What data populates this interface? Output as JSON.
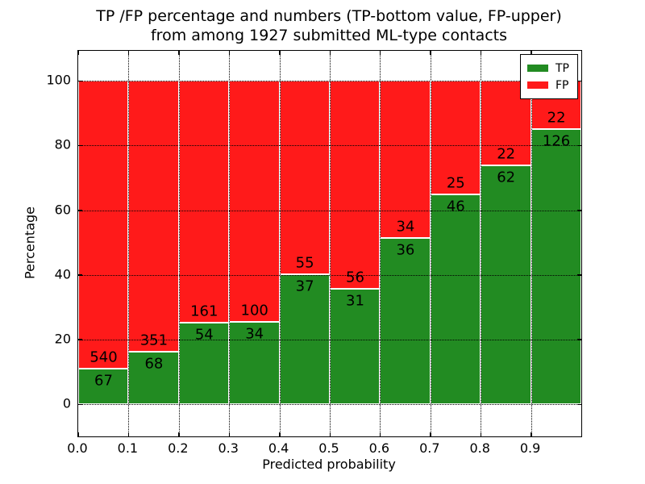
{
  "title_line1": "TP /FP percentage and numbers (TP-bottom value, FP-upper)",
  "title_line2": "from among 1927 submitted ML-type contacts",
  "total_contacts": "1927",
  "chart_data": {
    "type": "bar",
    "stacked": true,
    "normalized": "percent",
    "title": "TP /FP percentage and numbers (TP-bottom value, FP-upper) from among 1927 submitted ML-type contacts",
    "xlabel": "Predicted probability",
    "ylabel": "Percentage",
    "bin_left_edges": [
      0.0,
      0.1,
      0.2,
      0.3,
      0.4,
      0.5,
      0.6,
      0.7,
      0.8,
      0.9
    ],
    "bin_width": 0.1,
    "series": [
      {
        "name": "TP",
        "color": "#228B22",
        "values": [
          67,
          68,
          54,
          34,
          37,
          31,
          36,
          46,
          62,
          126
        ]
      },
      {
        "name": "FP",
        "color": "#ff1a1a",
        "values": [
          540,
          351,
          161,
          100,
          55,
          56,
          34,
          25,
          22,
          22
        ]
      }
    ],
    "tp_percent_by_bin": [
      11.0,
      16.2,
      25.1,
      25.4,
      40.2,
      35.6,
      51.4,
      64.8,
      73.8,
      85.1
    ],
    "x_ticks": [
      "0.0",
      "0.1",
      "0.2",
      "0.3",
      "0.4",
      "0.5",
      "0.6",
      "0.7",
      "0.8",
      "0.9"
    ],
    "y_ticks": [
      "0",
      "20",
      "40",
      "60",
      "80",
      "100"
    ],
    "y_tick_values": [
      0,
      20,
      40,
      60,
      80,
      100
    ],
    "xlim": [
      0,
      1
    ],
    "ylim": [
      -10,
      109
    ],
    "grid": "dotted-black-over-bars",
    "legend_position": "upper right",
    "legend": [
      "TP",
      "FP"
    ]
  }
}
